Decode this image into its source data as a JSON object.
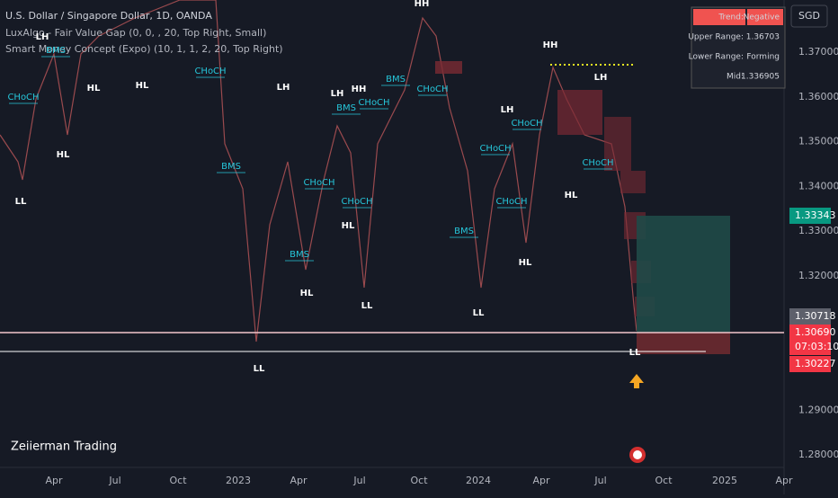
{
  "header": {
    "symbol": "U.S. Dollar / Singapore Dollar, 1D, OANDA",
    "indicator_1": "LuxAlgo - Fair Value Gap (0, 0, , 20, Top Right, Small)",
    "indicator_2": "Smart Money Concept (Expo) (10, 1, 1, 2, 20, Top Right)"
  },
  "currency": "SGD",
  "info_table": {
    "rows": [
      [
        "Trend:",
        "Negative"
      ],
      [
        "Upper Range:",
        "1.36703"
      ],
      [
        "Lower Range:",
        "Forming"
      ],
      [
        "Mid:",
        "1.336905"
      ]
    ]
  },
  "price_axis": [
    "1.37000",
    "1.36000",
    "1.35000",
    "1.34000",
    "1.33000",
    "1.32000",
    "1.29000",
    "1.28000"
  ],
  "price_badges": {
    "target": "1.33343",
    "previous": "1.30718",
    "last": "1.30690",
    "countdown": "07:03:10",
    "low": "1.30227"
  },
  "time_axis": [
    "Apr",
    "Jul",
    "Oct",
    "2023",
    "Apr",
    "Jul",
    "Oct",
    "2024",
    "Apr",
    "Jul",
    "Oct",
    "2025",
    "Apr"
  ],
  "structure_labels": [
    "LH",
    "HL",
    "HL",
    "HL",
    "LL",
    "LH",
    "LH",
    "HH",
    "HH",
    "HL",
    "HL",
    "LL",
    "LL",
    "LH",
    "HL",
    "LL",
    "HH",
    "LH",
    "HL",
    "LL"
  ],
  "signal_labels": [
    "BMS",
    "CHoCH",
    "CHoCH",
    "BMS",
    "BMS",
    "CHoCH",
    "BMS",
    "CHoCH",
    "CHoCH",
    "BMS",
    "CHoCH",
    "BMS",
    "CHoCH",
    "CHoCH",
    "CHoCH",
    "CHoCH"
  ],
  "watermark": "Zeiierman Trading"
}
